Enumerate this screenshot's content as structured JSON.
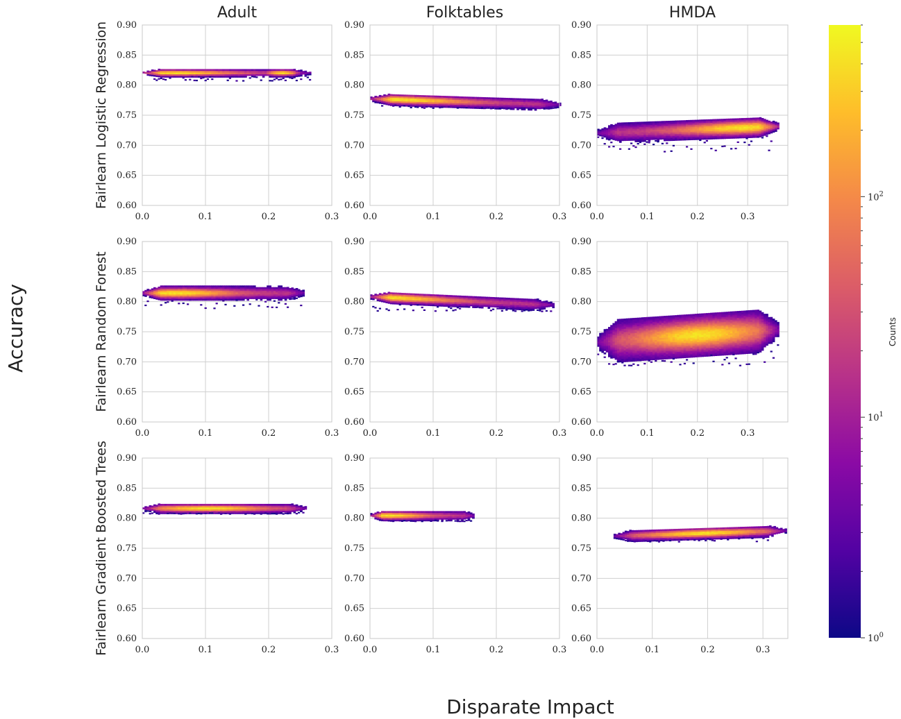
{
  "figure": {
    "xlabel": "Disparate Impact",
    "ylabel": "Accuracy",
    "columns": [
      "Adult",
      "Folktables",
      "HMDA"
    ],
    "rows": [
      "Fairlearn Logistic Regression",
      "Fairlearn Random Forest",
      "Fairlearn Gradient Boosted Trees"
    ]
  },
  "colorbar": {
    "label": "Counts",
    "scale": "log",
    "range": [
      1,
      600
    ],
    "ticks": [
      {
        "value": 1,
        "base": "10",
        "exp": "0"
      },
      {
        "value": 10,
        "base": "10",
        "exp": "1"
      },
      {
        "value": 100,
        "base": "10",
        "exp": "2"
      }
    ],
    "colormap": [
      "#0d0887",
      "#5302a3",
      "#8b0aa5",
      "#b83289",
      "#db5c68",
      "#f48849",
      "#febd2a",
      "#f0f921"
    ]
  },
  "chart_data": {
    "type": "heatmap",
    "description_of_panels": "3x3 grid of hexbin density plots; rows = models, columns = datasets",
    "ylim": [
      0.6,
      0.9
    ],
    "yticks": [
      "0.60",
      "0.65",
      "0.70",
      "0.75",
      "0.80",
      "0.85",
      "0.90"
    ],
    "panels": [
      {
        "row": 0,
        "col": 0,
        "xlim": [
          0,
          0.3
        ],
        "xticks": [
          "0.0",
          "0.1",
          "0.2",
          "0.3"
        ],
        "cloud": {
          "x_min": 0.0,
          "x_max": 0.265,
          "y_center": 0.822,
          "y_spread": 0.004,
          "peak_x": 0.05,
          "low_tail_y": 0.808,
          "hot_spots": [
            0.05,
            0.22
          ]
        }
      },
      {
        "row": 0,
        "col": 1,
        "xlim": [
          0,
          0.3
        ],
        "xticks": [
          "0.0",
          "0.1",
          "0.2",
          "0.3"
        ],
        "cloud": {
          "x_min": 0.0,
          "x_max": 0.3,
          "y_center_start": 0.779,
          "y_center_end": 0.769,
          "y_spread": 0.006,
          "peak_x": 0.05,
          "low_tail_y": 0.763
        }
      },
      {
        "row": 0,
        "col": 2,
        "xlim": [
          0,
          0.38
        ],
        "xticks": [
          "0.0",
          "0.1",
          "0.2",
          "0.3"
        ],
        "cloud": {
          "x_min": 0.0,
          "x_max": 0.36,
          "y_center_start": 0.722,
          "y_center_end": 0.733,
          "y_spread": 0.01,
          "peak_x": 0.29,
          "low_tail_y": 0.69
        }
      },
      {
        "row": 1,
        "col": 0,
        "xlim": [
          0,
          0.3
        ],
        "xticks": [
          "0.0",
          "0.1",
          "0.2",
          "0.3"
        ],
        "cloud": {
          "x_min": 0.0,
          "x_max": 0.255,
          "y_center": 0.816,
          "y_spread": 0.007,
          "peak_x": 0.05,
          "low_tail_y": 0.79
        }
      },
      {
        "row": 1,
        "col": 1,
        "xlim": [
          0,
          0.3
        ],
        "xticks": [
          "0.0",
          "0.1",
          "0.2",
          "0.3"
        ],
        "cloud": {
          "x_min": 0.0,
          "x_max": 0.29,
          "y_center_start": 0.81,
          "y_center_end": 0.796,
          "y_spread": 0.006,
          "peak_x": 0.03,
          "low_tail_y": 0.785
        }
      },
      {
        "row": 1,
        "col": 2,
        "xlim": [
          0,
          0.38
        ],
        "xticks": [
          "0.0",
          "0.1",
          "0.2",
          "0.3"
        ],
        "cloud": {
          "x_min": 0.0,
          "x_max": 0.36,
          "y_center_start": 0.735,
          "y_center_end": 0.755,
          "y_spread": 0.022,
          "peak_x": 0.2,
          "low_tail_y": 0.695
        }
      },
      {
        "row": 2,
        "col": 0,
        "xlim": [
          0,
          0.3
        ],
        "xticks": [
          "0.0",
          "0.1",
          "0.2",
          "0.3"
        ],
        "cloud": {
          "x_min": 0.0,
          "x_max": 0.26,
          "y_center": 0.818,
          "y_spread": 0.005,
          "peak_x": 0.1,
          "low_tail_y": 0.808
        }
      },
      {
        "row": 2,
        "col": 1,
        "xlim": [
          0,
          0.3
        ],
        "xticks": [
          "0.0",
          "0.1",
          "0.2",
          "0.3"
        ],
        "cloud": {
          "x_min": 0.0,
          "x_max": 0.165,
          "y_center": 0.806,
          "y_spread": 0.005,
          "peak_x": 0.03,
          "low_tail_y": 0.796
        }
      },
      {
        "row": 2,
        "col": 2,
        "xlim": [
          0,
          0.345
        ],
        "xticks": [
          "0.0",
          "0.1",
          "0.2",
          "0.3"
        ],
        "cloud": {
          "x_min": 0.03,
          "x_max": 0.34,
          "y_center_start": 0.772,
          "y_center_end": 0.781,
          "y_spread": 0.006,
          "peak_x": 0.19,
          "low_tail_y": 0.762
        }
      }
    ]
  }
}
